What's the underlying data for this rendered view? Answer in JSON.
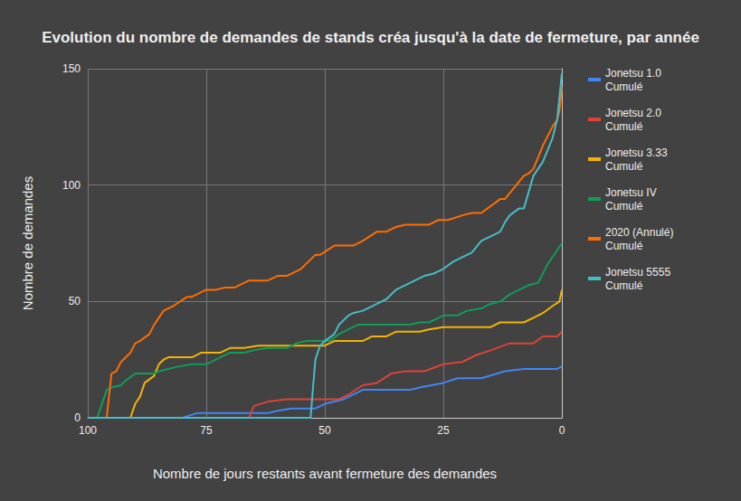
{
  "chart_data": {
    "type": "line",
    "title": "Evolution du nombre de demandes de stands créa jusqu'à la date de fermeture, par année",
    "x_label": "Nombre de jours restants avant fermeture des demandes",
    "y_label": "Nombre de demandes",
    "xlim": [
      100,
      0
    ],
    "xticks": [
      100,
      75,
      50,
      25,
      0
    ],
    "ylim": [
      0,
      150
    ],
    "yticks": [
      0,
      50,
      100,
      150
    ],
    "grid": true,
    "legend": "right",
    "series": [
      {
        "name": "Jonetsu 1.0 Cumulé",
        "color": "#4285f4",
        "x": [
          100,
          80,
          77,
          62,
          60,
          57,
          52,
          50,
          46,
          42,
          32,
          30,
          25,
          22,
          17,
          12,
          8,
          1,
          0
        ],
        "values": [
          0,
          0,
          2,
          2,
          3,
          4,
          4,
          6,
          8,
          12,
          12,
          13,
          15,
          17,
          17,
          20,
          21,
          21,
          22
        ]
      },
      {
        "name": "Jonetsu 2.0 Cumulé",
        "color": "#db4437",
        "x": [
          100,
          66,
          65,
          62,
          58,
          47,
          45,
          42,
          39,
          36,
          33,
          29,
          25,
          21,
          18,
          15,
          11,
          6,
          4,
          1,
          0
        ],
        "values": [
          0,
          0,
          5,
          7,
          8,
          8,
          10,
          14,
          15,
          19,
          20,
          20,
          23,
          24,
          27,
          29,
          32,
          32,
          35,
          35,
          37
        ]
      },
      {
        "name": "Jonetsu 3.33 Cumulé",
        "color": "#f4b400",
        "x": [
          100,
          91,
          90,
          89,
          88,
          86,
          85,
          84,
          83,
          78,
          76,
          72,
          70,
          67,
          64,
          50,
          48,
          42,
          40,
          37,
          35,
          30,
          28,
          25,
          15,
          13,
          8,
          6,
          4,
          2,
          0.5,
          0
        ],
        "values": [
          0,
          0,
          6,
          9,
          15,
          18,
          23,
          25,
          26,
          26,
          28,
          28,
          30,
          30,
          31,
          31,
          33,
          33,
          35,
          35,
          37,
          37,
          38,
          39,
          39,
          41,
          41,
          43,
          45,
          48,
          50,
          55
        ]
      },
      {
        "name": "Jonetsu IV Cumulé",
        "color": "#0f9d58",
        "x": [
          100,
          98,
          97,
          96,
          95,
          93,
          92,
          90,
          86,
          85,
          83,
          81,
          78,
          75,
          73,
          70,
          67,
          65,
          62,
          58,
          56,
          54,
          49,
          47,
          45,
          43,
          32,
          30,
          28,
          25,
          22,
          20,
          17,
          15,
          13,
          11,
          9,
          7,
          5,
          4,
          3,
          2,
          1,
          0
        ],
        "values": [
          0,
          0,
          6,
          12,
          13,
          14,
          16,
          19,
          19,
          20,
          21,
          22,
          23,
          23,
          25,
          28,
          28,
          29,
          30,
          30,
          32,
          33,
          33,
          36,
          38,
          40,
          40,
          41,
          41,
          44,
          44,
          46,
          47,
          49,
          50,
          53,
          55,
          57,
          58,
          62,
          66,
          69,
          72,
          75
        ]
      },
      {
        "name": "2020 (Annulé) Cumulé",
        "color": "#ff6d00",
        "x": [
          100,
          96,
          95,
          94,
          93,
          91,
          90,
          89,
          87,
          86,
          84,
          82,
          79,
          78,
          75,
          73,
          71,
          69,
          66,
          62,
          60,
          58,
          55,
          54,
          52,
          51,
          48,
          44,
          42,
          39,
          37,
          35,
          33,
          28,
          26,
          24,
          21,
          19,
          17,
          15,
          13,
          12,
          10,
          8,
          7,
          6,
          5,
          4,
          3,
          2,
          1,
          0.5,
          0
        ],
        "values": [
          0,
          0,
          19,
          20,
          24,
          28,
          32,
          33,
          36,
          40,
          46,
          48,
          52,
          52,
          55,
          55,
          56,
          56,
          59,
          59,
          61,
          61,
          64,
          66,
          70,
          70,
          74,
          74,
          76,
          80,
          80,
          82,
          83,
          83,
          85,
          85,
          87,
          88,
          88,
          91,
          94,
          94,
          99,
          104,
          105,
          107,
          112,
          117,
          121,
          125,
          128,
          132,
          142
        ]
      },
      {
        "name": "Jonetsu 5555 Cumulé",
        "color": "#46bdc6",
        "x": [
          100,
          53,
          52,
          51,
          50,
          48,
          47,
          45,
          44,
          42,
          41,
          38,
          37,
          35,
          33,
          31,
          29,
          27,
          25,
          23,
          21,
          19,
          17,
          15,
          13,
          12,
          11,
          9,
          8,
          7,
          6,
          4,
          3,
          2,
          1,
          0
        ],
        "values": [
          0,
          0,
          25,
          31,
          33,
          36,
          40,
          44,
          45,
          46,
          47,
          50,
          51,
          55,
          57,
          59,
          61,
          62,
          64,
          67,
          69,
          71,
          76,
          78,
          80,
          84,
          87,
          90,
          90,
          97,
          104,
          110,
          115,
          120,
          128,
          148
        ]
      }
    ]
  }
}
